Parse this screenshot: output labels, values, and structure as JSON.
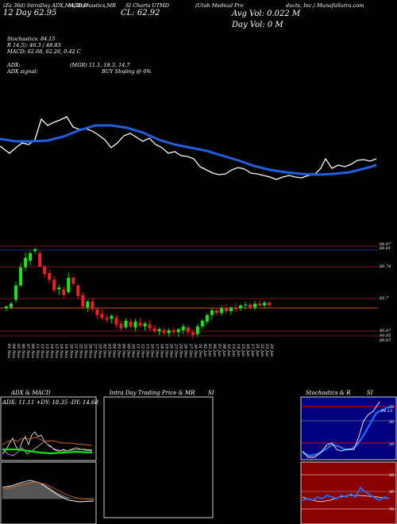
{
  "header": {
    "line1_left": "(Za 36d) IntraDay ADX,MACD,B",
    "line1_mid": "M,Stochastics,MR",
    "line1_mid2": "SI Charts UTMD",
    "line1_right": "(Utah Medical Pro",
    "line1_right2": "ducts, Inc.) MunafaSutra.com",
    "line2_left": "12 Day 62.95",
    "close": "CL: 62.92",
    "avg_vol": "Avg Vol: 0.022  M",
    "day_vol": "Day Vol: 0   M"
  },
  "indicators": {
    "stochastics": "Stochastics: 84.15",
    "r_line": "R                    14,5): 46.3 / 48.83",
    "macd": "MACD: 62.68, 62.26, 0.42  C",
    "adx": "ADX:",
    "mgr": "(MGR) 11.1,  18.3,  14.7",
    "adx_signal": "ADX  signal:",
    "buy": "BUY Sloping @ 6%"
  },
  "chart_data": {
    "type": "candlestick",
    "x_labels": [
      "01 Nov",
      "04 Nov",
      "05 Nov",
      "06 Nov",
      "07 Nov",
      "08 Nov",
      "11 Nov",
      "12 Nov",
      "13 Nov",
      "14 Nov",
      "15 Nov",
      "18 Nov",
      "19 Nov",
      "20 Nov",
      "21 Nov",
      "22 Nov",
      "25 Nov",
      "26 Nov",
      "27 Nov",
      "29 Nov",
      "02 Dec",
      "03 Dec",
      "04 Dec",
      "05 Dec",
      "06 Dec",
      "09 Dec",
      "10 Dec",
      "11 Dec",
      "12 Dec",
      "13 Dec",
      "16 Dec",
      "17 Dec",
      "18 Dec",
      "19 Dec",
      "20 Dec",
      "23 Dec",
      "24 Dec",
      "26 Dec",
      "27 Dec",
      "30 Dec",
      "31 Dec",
      "02 Jan",
      "03 Jan",
      "06 Jan",
      "07 Jan",
      "08 Jan",
      "10 Jan",
      "13 Jan",
      "14 Jan",
      "15 Jan",
      "16 Jan",
      "17 Jan",
      "21 Jan",
      "22 Jan",
      "23 Jan",
      "24 Jan"
    ],
    "price_levels": [
      "68.97",
      "68.81",
      "66.74",
      "62.7",
      "60.67",
      "60.05",
      "60.67"
    ],
    "candles": [
      {
        "o": 62.6,
        "h": 62.9,
        "l": 62.3,
        "c": 62.8
      },
      {
        "o": 62.7,
        "h": 63.3,
        "l": 62.5,
        "c": 63.1
      },
      {
        "o": 63.5,
        "h": 65.4,
        "l": 63.2,
        "c": 65.0
      },
      {
        "o": 65.0,
        "h": 67.4,
        "l": 64.8,
        "c": 66.9
      },
      {
        "o": 66.9,
        "h": 68.5,
        "l": 66.5,
        "c": 67.9
      },
      {
        "o": 67.6,
        "h": 68.6,
        "l": 67.1,
        "c": 68.4
      },
      {
        "o": 68.6,
        "h": 69.0,
        "l": 68.3,
        "c": 68.8
      },
      {
        "o": 68.4,
        "h": 68.7,
        "l": 66.9,
        "c": 67.0
      },
      {
        "o": 67.0,
        "h": 67.2,
        "l": 65.8,
        "c": 66.2
      },
      {
        "o": 66.3,
        "h": 66.7,
        "l": 65.2,
        "c": 65.6
      },
      {
        "o": 65.6,
        "h": 66.0,
        "l": 64.2,
        "c": 64.5
      },
      {
        "o": 64.6,
        "h": 65.1,
        "l": 64.0,
        "c": 64.8
      },
      {
        "o": 64.6,
        "h": 64.9,
        "l": 63.7,
        "c": 64.0
      },
      {
        "o": 64.3,
        "h": 66.4,
        "l": 64.1,
        "c": 65.8
      },
      {
        "o": 65.8,
        "h": 66.0,
        "l": 64.9,
        "c": 65.2
      },
      {
        "o": 65.0,
        "h": 65.2,
        "l": 63.6,
        "c": 63.9
      },
      {
        "o": 64.0,
        "h": 64.3,
        "l": 62.5,
        "c": 62.8
      },
      {
        "o": 62.7,
        "h": 63.5,
        "l": 62.2,
        "c": 63.3
      },
      {
        "o": 63.3,
        "h": 63.7,
        "l": 62.2,
        "c": 62.5
      },
      {
        "o": 62.5,
        "h": 62.7,
        "l": 61.5,
        "c": 61.9
      },
      {
        "o": 62.0,
        "h": 62.5,
        "l": 61.4,
        "c": 61.6
      },
      {
        "o": 61.6,
        "h": 62.0,
        "l": 61.1,
        "c": 61.4
      },
      {
        "o": 61.5,
        "h": 62.0,
        "l": 61.0,
        "c": 61.8
      },
      {
        "o": 61.6,
        "h": 61.9,
        "l": 60.6,
        "c": 60.9
      },
      {
        "o": 61.0,
        "h": 61.3,
        "l": 60.2,
        "c": 60.5
      },
      {
        "o": 60.6,
        "h": 61.6,
        "l": 60.4,
        "c": 61.3
      },
      {
        "o": 61.2,
        "h": 61.5,
        "l": 60.5,
        "c": 60.7
      },
      {
        "o": 60.6,
        "h": 61.5,
        "l": 60.2,
        "c": 61.2
      },
      {
        "o": 61.1,
        "h": 61.6,
        "l": 60.6,
        "c": 60.8
      },
      {
        "o": 60.7,
        "h": 61.2,
        "l": 60.3,
        "c": 61.0
      },
      {
        "o": 60.9,
        "h": 61.4,
        "l": 60.2,
        "c": 60.5
      },
      {
        "o": 60.5,
        "h": 60.8,
        "l": 60.0,
        "c": 60.2
      },
      {
        "o": 60.2,
        "h": 60.6,
        "l": 59.8,
        "c": 60.4
      },
      {
        "o": 60.3,
        "h": 60.6,
        "l": 59.8,
        "c": 60.0
      },
      {
        "o": 60.0,
        "h": 60.5,
        "l": 59.6,
        "c": 60.3
      },
      {
        "o": 60.3,
        "h": 60.6,
        "l": 59.8,
        "c": 60.1
      },
      {
        "o": 60.1,
        "h": 60.5,
        "l": 59.6,
        "c": 60.4
      },
      {
        "o": 60.3,
        "h": 61.0,
        "l": 59.9,
        "c": 60.7
      },
      {
        "o": 60.6,
        "h": 60.8,
        "l": 59.8,
        "c": 60.1
      },
      {
        "o": 60.1,
        "h": 60.4,
        "l": 59.4,
        "c": 59.8
      },
      {
        "o": 59.9,
        "h": 61.0,
        "l": 59.6,
        "c": 60.7
      },
      {
        "o": 60.7,
        "h": 61.5,
        "l": 60.4,
        "c": 61.3
      },
      {
        "o": 61.2,
        "h": 62.1,
        "l": 60.9,
        "c": 61.9
      },
      {
        "o": 61.9,
        "h": 62.6,
        "l": 61.4,
        "c": 62.4
      },
      {
        "o": 62.4,
        "h": 62.7,
        "l": 61.8,
        "c": 62.1
      },
      {
        "o": 62.1,
        "h": 62.9,
        "l": 61.8,
        "c": 62.6
      },
      {
        "o": 62.6,
        "h": 63.1,
        "l": 62.0,
        "c": 62.3
      },
      {
        "o": 62.3,
        "h": 62.8,
        "l": 61.9,
        "c": 62.7
      },
      {
        "o": 62.7,
        "h": 63.2,
        "l": 62.2,
        "c": 62.5
      },
      {
        "o": 62.6,
        "h": 63.1,
        "l": 62.3,
        "c": 62.9
      },
      {
        "o": 62.9,
        "h": 63.3,
        "l": 62.5,
        "c": 63.0
      },
      {
        "o": 63.0,
        "h": 63.3,
        "l": 62.5,
        "c": 62.7
      },
      {
        "o": 62.7,
        "h": 63.4,
        "l": 62.4,
        "c": 63.1
      },
      {
        "o": 63.1,
        "h": 63.5,
        "l": 62.8,
        "c": 62.9
      },
      {
        "o": 62.9,
        "h": 63.4,
        "l": 62.6,
        "c": 63.2
      },
      {
        "o": 63.2,
        "h": 63.4,
        "l": 62.6,
        "c": 62.92
      }
    ]
  },
  "panels": {
    "adx_title": "ADX  & MACD",
    "adx_values": "ADX: 11.11  +DY: 18.35  -DY: 14.68",
    "intraday_title": "Intra  Day Trading Price  & MR",
    "si": "SI",
    "stoch_title": "Stochastics & R",
    "stoch_si": "SI",
    "stoch_levels": [
      "80",
      "50",
      "20"
    ],
    "si_levels": [
      "50",
      "30",
      "70"
    ],
    "stoch_value": "84.15"
  }
}
